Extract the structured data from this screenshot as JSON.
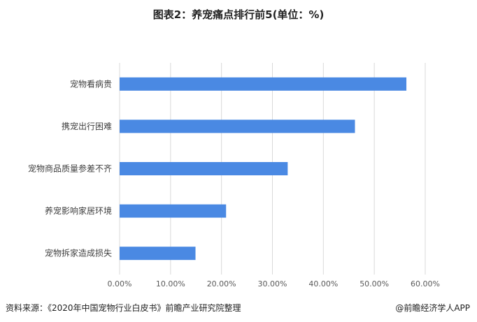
{
  "chart_data": {
    "type": "bar",
    "orientation": "horizontal",
    "title": "图表2：养宠痛点排行前5(单位：%)",
    "categories": [
      "宠物看病贵",
      "携宠出行困难",
      "宠物商品质量参差不齐",
      "养宠影响家居环境",
      "宠物拆家造成损失"
    ],
    "values": [
      56.3,
      46.2,
      33.0,
      20.9,
      14.9
    ],
    "xlim": [
      0,
      60
    ],
    "xticks": [
      "0.00%",
      "10.00%",
      "20.00%",
      "30.00%",
      "40.00%",
      "50.00%",
      "60.00%"
    ],
    "grid": true,
    "bar_color": "#4a89e3"
  },
  "footer": {
    "source": "资料来源：《2020年中国宠物行业白皮书》前瞻产业研究院整理",
    "brand": "@前瞻经济学人APP"
  },
  "watermark": "前瞻产业研究院"
}
